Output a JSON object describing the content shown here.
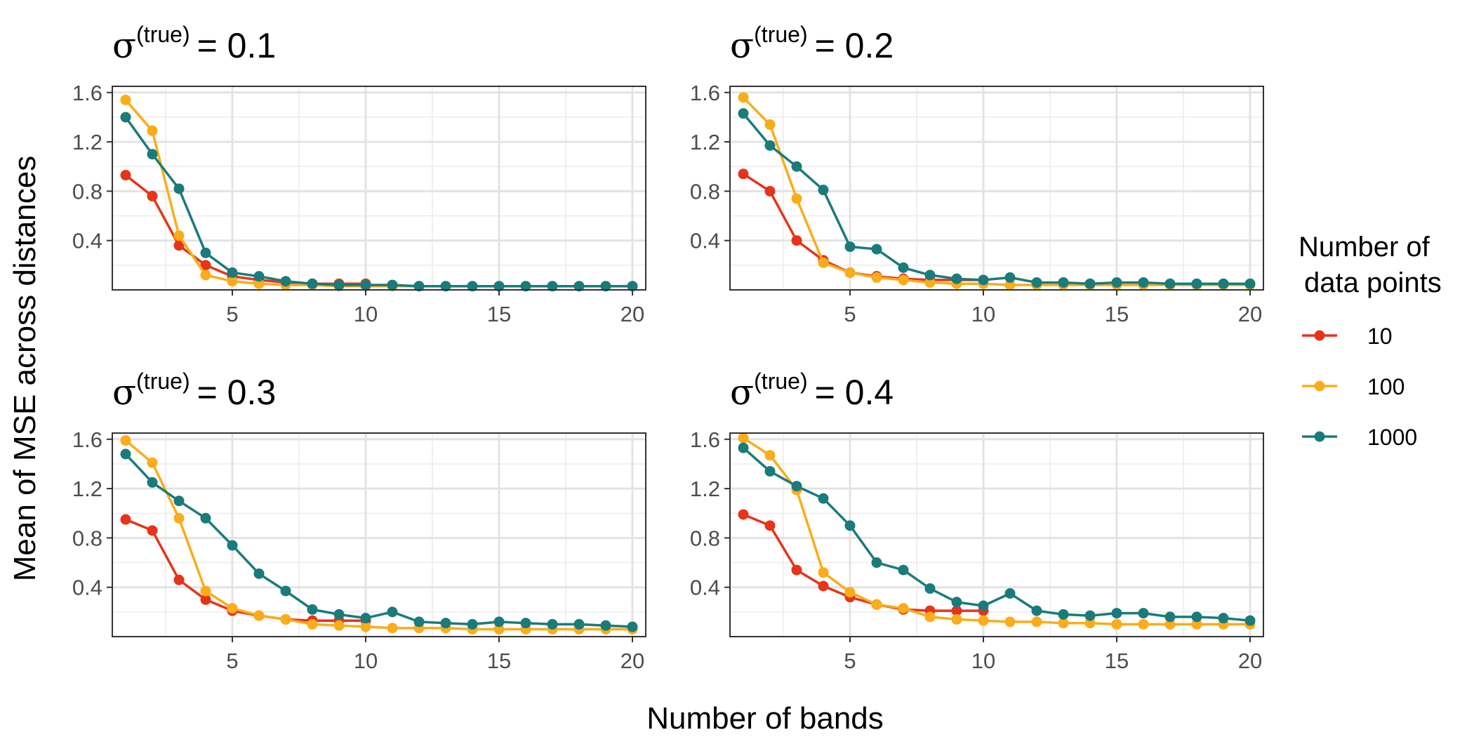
{
  "figure": {
    "xlabel": "Number of bands",
    "ylabel": "Mean of MSE across distances"
  },
  "legend": {
    "title_line1": "Number of",
    "title_line2": "data points",
    "items": [
      {
        "label": "10",
        "color": "#e6341a"
      },
      {
        "label": "100",
        "color": "#fbac19"
      },
      {
        "label": "1000",
        "color": "#1a7b7b"
      }
    ]
  },
  "chart_data": [
    {
      "type": "line",
      "title": "σ^(true) = 0.1",
      "title_symbol": "σ",
      "title_superscript": "(true)",
      "title_value": "= 0.1",
      "xlabel": "Number of bands",
      "ylabel": "Mean of MSE across distances",
      "xlim": [
        0.5,
        20.5
      ],
      "ylim": [
        0,
        1.65
      ],
      "xticks": [
        5,
        10,
        15,
        20
      ],
      "yticks": [
        0.4,
        0.8,
        1.2,
        1.6
      ],
      "xtick_labels": [
        "5",
        "10",
        "15",
        "20"
      ],
      "ytick_labels": [
        "0.4",
        "0.8",
        "1.2",
        "1.6"
      ],
      "grid": true,
      "series": [
        {
          "name": "10",
          "x": [
            1,
            2,
            3,
            4,
            5,
            6,
            7,
            8,
            9,
            10
          ],
          "values": [
            0.93,
            0.76,
            0.36,
            0.2,
            0.11,
            0.08,
            0.06,
            0.05,
            0.05,
            0.05
          ]
        },
        {
          "name": "100",
          "x": [
            1,
            2,
            3,
            4,
            5,
            6,
            7,
            8,
            9,
            10,
            11,
            12,
            13,
            14,
            15,
            16,
            17,
            18,
            19,
            20
          ],
          "values": [
            1.54,
            1.29,
            0.44,
            0.12,
            0.07,
            0.05,
            0.04,
            0.04,
            0.03,
            0.03,
            0.03,
            0.03,
            0.03,
            0.03,
            0.03,
            0.03,
            0.03,
            0.03,
            0.03,
            0.03
          ]
        },
        {
          "name": "1000",
          "x": [
            1,
            2,
            3,
            4,
            5,
            6,
            7,
            8,
            9,
            10,
            11,
            12,
            13,
            14,
            15,
            16,
            17,
            18,
            19,
            20
          ],
          "values": [
            1.4,
            1.1,
            0.82,
            0.3,
            0.14,
            0.11,
            0.07,
            0.05,
            0.04,
            0.04,
            0.04,
            0.03,
            0.03,
            0.03,
            0.03,
            0.03,
            0.03,
            0.03,
            0.03,
            0.03
          ]
        }
      ]
    },
    {
      "type": "line",
      "title": "σ^(true) = 0.2",
      "title_symbol": "σ",
      "title_superscript": "(true)",
      "title_value": "= 0.2",
      "xlabel": "Number of bands",
      "ylabel": "Mean of MSE across distances",
      "xlim": [
        0.5,
        20.5
      ],
      "ylim": [
        0,
        1.65
      ],
      "xticks": [
        5,
        10,
        15,
        20
      ],
      "yticks": [
        0.4,
        0.8,
        1.2,
        1.6
      ],
      "xtick_labels": [
        "5",
        "10",
        "15",
        "20"
      ],
      "ytick_labels": [
        "0.4",
        "0.8",
        "1.2",
        "1.6"
      ],
      "grid": true,
      "series": [
        {
          "name": "10",
          "x": [
            1,
            2,
            3,
            4,
            5,
            6,
            7,
            8,
            9,
            10
          ],
          "values": [
            0.94,
            0.8,
            0.4,
            0.24,
            0.14,
            0.11,
            0.09,
            0.08,
            0.08,
            0.08
          ]
        },
        {
          "name": "100",
          "x": [
            1,
            2,
            3,
            4,
            5,
            6,
            7,
            8,
            9,
            10,
            11,
            12,
            13,
            14,
            15,
            16,
            17,
            18,
            19,
            20
          ],
          "values": [
            1.56,
            1.34,
            0.74,
            0.22,
            0.14,
            0.1,
            0.08,
            0.06,
            0.05,
            0.05,
            0.04,
            0.04,
            0.04,
            0.04,
            0.04,
            0.04,
            0.04,
            0.04,
            0.04,
            0.04
          ]
        },
        {
          "name": "1000",
          "x": [
            1,
            2,
            3,
            4,
            5,
            6,
            7,
            8,
            9,
            10,
            11,
            12,
            13,
            14,
            15,
            16,
            17,
            18,
            19,
            20
          ],
          "values": [
            1.43,
            1.17,
            1.0,
            0.81,
            0.35,
            0.33,
            0.18,
            0.12,
            0.09,
            0.08,
            0.1,
            0.06,
            0.06,
            0.05,
            0.06,
            0.06,
            0.05,
            0.05,
            0.05,
            0.05
          ]
        }
      ]
    },
    {
      "type": "line",
      "title": "σ^(true) = 0.3",
      "title_symbol": "σ",
      "title_superscript": "(true)",
      "title_value": "= 0.3",
      "xlabel": "Number of bands",
      "ylabel": "Mean of MSE across distances",
      "xlim": [
        0.5,
        20.5
      ],
      "ylim": [
        0,
        1.65
      ],
      "xticks": [
        5,
        10,
        15,
        20
      ],
      "yticks": [
        0.4,
        0.8,
        1.2,
        1.6
      ],
      "xtick_labels": [
        "5",
        "10",
        "15",
        "20"
      ],
      "ytick_labels": [
        "0.4",
        "0.8",
        "1.2",
        "1.6"
      ],
      "grid": true,
      "series": [
        {
          "name": "10",
          "x": [
            1,
            2,
            3,
            4,
            5,
            6,
            7,
            8,
            9,
            10
          ],
          "values": [
            0.95,
            0.86,
            0.46,
            0.3,
            0.21,
            0.17,
            0.14,
            0.13,
            0.13,
            0.13
          ]
        },
        {
          "name": "100",
          "x": [
            1,
            2,
            3,
            4,
            5,
            6,
            7,
            8,
            9,
            10,
            11,
            12,
            13,
            14,
            15,
            16,
            17,
            18,
            19,
            20
          ],
          "values": [
            1.59,
            1.41,
            0.96,
            0.37,
            0.23,
            0.17,
            0.14,
            0.1,
            0.09,
            0.08,
            0.07,
            0.07,
            0.07,
            0.06,
            0.06,
            0.06,
            0.06,
            0.06,
            0.06,
            0.06
          ]
        },
        {
          "name": "1000",
          "x": [
            1,
            2,
            3,
            4,
            5,
            6,
            7,
            8,
            9,
            10,
            11,
            12,
            13,
            14,
            15,
            16,
            17,
            18,
            19,
            20
          ],
          "values": [
            1.48,
            1.25,
            1.1,
            0.96,
            0.74,
            0.51,
            0.37,
            0.22,
            0.18,
            0.15,
            0.2,
            0.12,
            0.11,
            0.1,
            0.12,
            0.11,
            0.1,
            0.1,
            0.09,
            0.08
          ]
        }
      ]
    },
    {
      "type": "line",
      "title": "σ^(true) = 0.4",
      "title_symbol": "σ",
      "title_superscript": "(true)",
      "title_value": "= 0.4",
      "xlabel": "Number of bands",
      "ylabel": "Mean of MSE across distances",
      "xlim": [
        0.5,
        20.5
      ],
      "ylim": [
        0,
        1.65
      ],
      "xticks": [
        5,
        10,
        15,
        20
      ],
      "yticks": [
        0.4,
        0.8,
        1.2,
        1.6
      ],
      "xtick_labels": [
        "5",
        "10",
        "15",
        "20"
      ],
      "ytick_labels": [
        "0.4",
        "0.8",
        "1.2",
        "1.6"
      ],
      "grid": true,
      "series": [
        {
          "name": "10",
          "x": [
            1,
            2,
            3,
            4,
            5,
            6,
            7,
            8,
            9,
            10
          ],
          "values": [
            0.99,
            0.9,
            0.54,
            0.41,
            0.32,
            0.26,
            0.22,
            0.21,
            0.21,
            0.21
          ]
        },
        {
          "name": "100",
          "x": [
            1,
            2,
            3,
            4,
            5,
            6,
            7,
            8,
            9,
            10,
            11,
            12,
            13,
            14,
            15,
            16,
            17,
            18,
            19,
            20
          ],
          "values": [
            1.61,
            1.47,
            1.19,
            0.52,
            0.36,
            0.26,
            0.23,
            0.16,
            0.14,
            0.13,
            0.12,
            0.12,
            0.11,
            0.11,
            0.1,
            0.1,
            0.1,
            0.1,
            0.1,
            0.1
          ]
        },
        {
          "name": "1000",
          "x": [
            1,
            2,
            3,
            4,
            5,
            6,
            7,
            8,
            9,
            10,
            11,
            12,
            13,
            14,
            15,
            16,
            17,
            18,
            19,
            20
          ],
          "values": [
            1.53,
            1.34,
            1.22,
            1.12,
            0.9,
            0.6,
            0.54,
            0.39,
            0.28,
            0.25,
            0.35,
            0.21,
            0.18,
            0.17,
            0.19,
            0.19,
            0.16,
            0.16,
            0.15,
            0.13
          ]
        }
      ]
    }
  ]
}
